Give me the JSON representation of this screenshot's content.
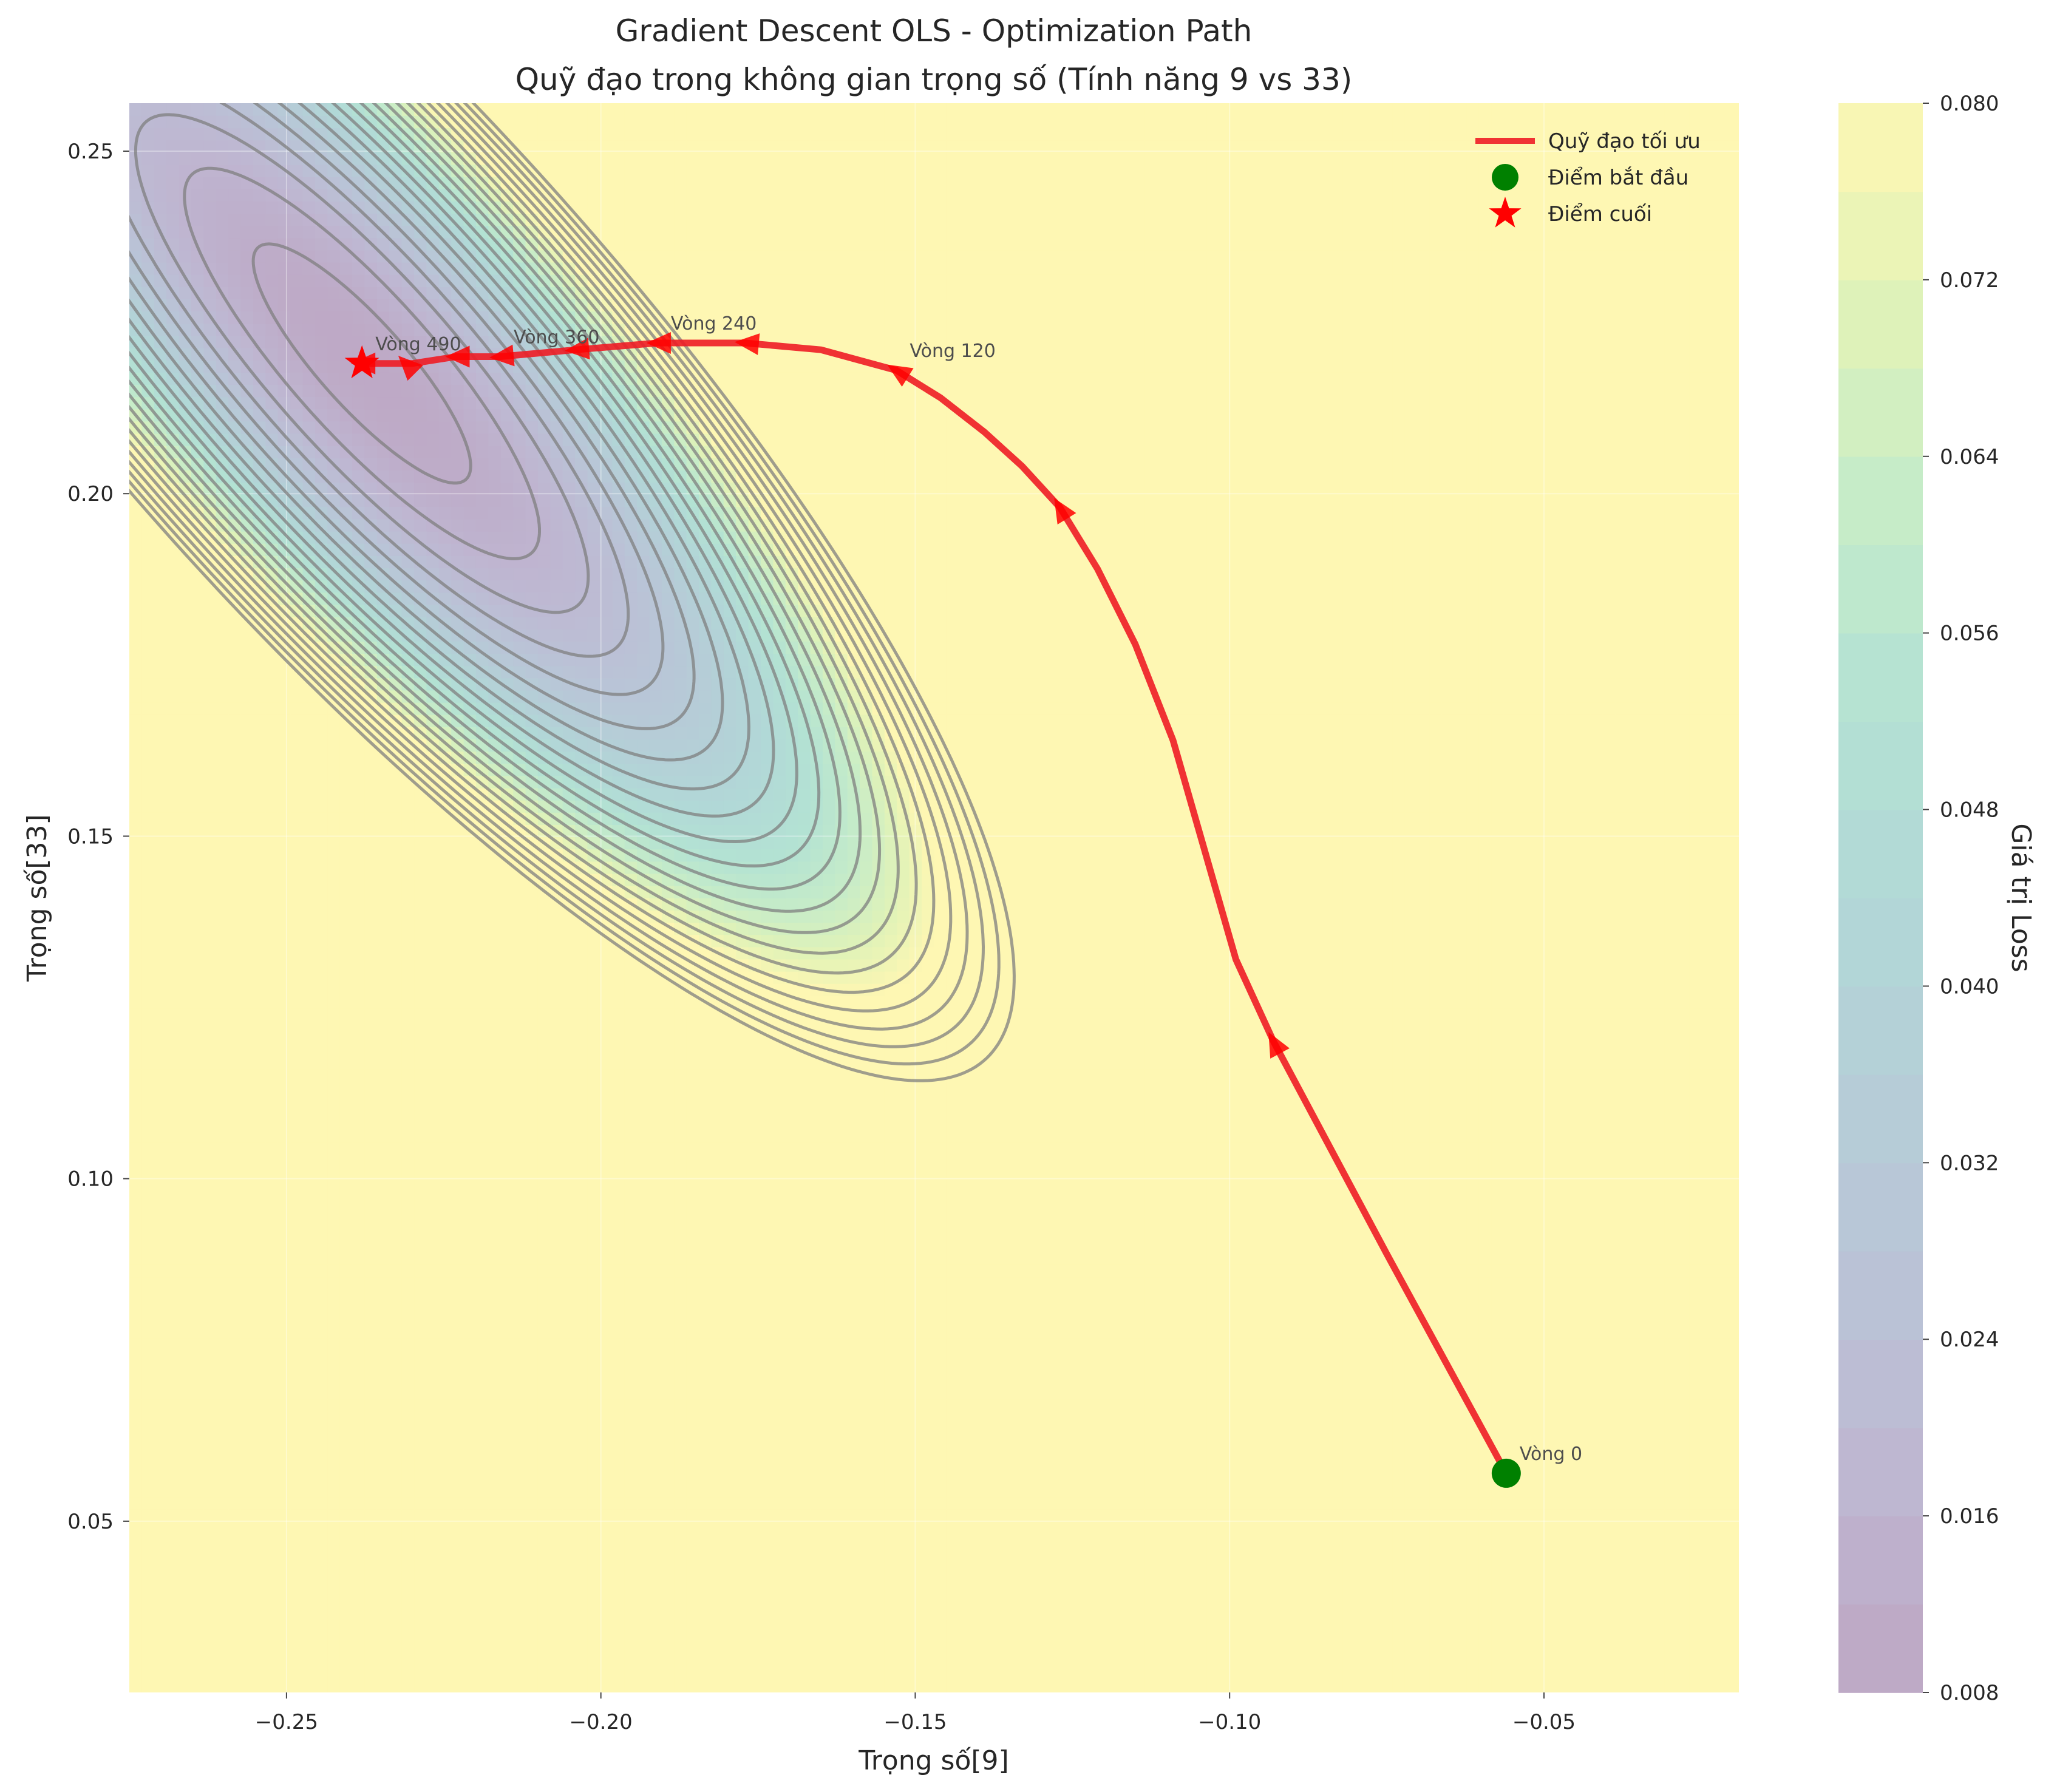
{
  "chart_data": {
    "type": "contour",
    "title": "Gradient Descent OLS - Optimization Path",
    "subtitle": "Quỹ đạo trong không gian trọng số (Tính năng 9 vs 33)",
    "xlabel": "Trọng số[9]",
    "ylabel": "Trọng số[33]",
    "xlim": [
      -0.275,
      -0.019
    ],
    "ylim": [
      0.025,
      0.257
    ],
    "x_ticks": [
      -0.25,
      -0.2,
      -0.15,
      -0.1,
      -0.05
    ],
    "x_tick_labels": [
      "−0.25",
      "−0.20",
      "−0.15",
      "−0.10",
      "−0.05"
    ],
    "y_ticks": [
      0.05,
      0.1,
      0.15,
      0.2,
      0.25
    ],
    "y_tick_labels": [
      "0.05",
      "0.10",
      "0.15",
      "0.20",
      "0.25"
    ],
    "grid": true,
    "colorbar": {
      "label": "Giá trị Loss",
      "min": 0.008,
      "max": 0.08,
      "ticks": [
        0.008,
        0.016,
        0.024,
        0.032,
        0.04,
        0.048,
        0.056,
        0.064,
        0.072,
        0.08
      ],
      "tick_labels": [
        "0.008",
        "0.016",
        "0.024",
        "0.032",
        "0.040",
        "0.048",
        "0.056",
        "0.064",
        "0.072",
        "0.080"
      ],
      "colormap": "viridis"
    },
    "surface": {
      "minimum": [
        -0.238,
        0.219
      ],
      "minimum_loss": 0.0095
    },
    "series": [
      {
        "name": "Quỹ đạo tối ưu",
        "color": "#ee1c25",
        "points": [
          [
            -0.056,
            0.057
          ],
          [
            -0.075,
            0.089
          ],
          [
            -0.093,
            0.12
          ],
          [
            -0.099,
            0.132
          ],
          [
            -0.104,
            0.148
          ],
          [
            -0.109,
            0.164
          ],
          [
            -0.115,
            0.178
          ],
          [
            -0.121,
            0.189
          ],
          [
            -0.127,
            0.198
          ],
          [
            -0.133,
            0.204
          ],
          [
            -0.139,
            0.209
          ],
          [
            -0.146,
            0.214
          ],
          [
            -0.153,
            0.218
          ],
          [
            -0.165,
            0.221
          ],
          [
            -0.177,
            0.222
          ],
          [
            -0.184,
            0.222
          ],
          [
            -0.191,
            0.222
          ],
          [
            -0.204,
            0.221
          ],
          [
            -0.216,
            0.22
          ],
          [
            -0.223,
            0.22
          ],
          [
            -0.23,
            0.219
          ],
          [
            -0.238,
            0.219
          ]
        ]
      }
    ],
    "arrow_markers": [
      [
        -0.093,
        0.12
      ],
      [
        -0.127,
        0.198
      ],
      [
        -0.153,
        0.218
      ],
      [
        -0.177,
        0.222
      ],
      [
        -0.191,
        0.222
      ],
      [
        -0.204,
        0.221
      ],
      [
        -0.216,
        0.22
      ],
      [
        -0.223,
        0.22
      ],
      [
        -0.231,
        0.219
      ],
      [
        -0.238,
        0.219
      ]
    ],
    "start_point": {
      "name": "Điểm bắt đầu",
      "x": -0.056,
      "y": 0.057,
      "color": "#008000"
    },
    "end_point": {
      "name": "Điểm cuối",
      "x": -0.238,
      "y": 0.219,
      "color": "#ff0000"
    },
    "annotations": [
      {
        "text": "Vòng 0",
        "x": -0.056,
        "y": 0.057
      },
      {
        "text": "Vòng 120",
        "x": -0.153,
        "y": 0.218
      },
      {
        "text": "Vòng 240",
        "x": -0.191,
        "y": 0.222
      },
      {
        "text": "Vòng 360",
        "x": -0.216,
        "y": 0.22
      },
      {
        "text": "Vòng 490",
        "x": -0.238,
        "y": 0.219
      }
    ],
    "legend": {
      "position": "top-right",
      "items": [
        "Quỹ đạo tối ưu",
        "Điểm bắt đầu",
        "Điểm cuối"
      ]
    }
  }
}
